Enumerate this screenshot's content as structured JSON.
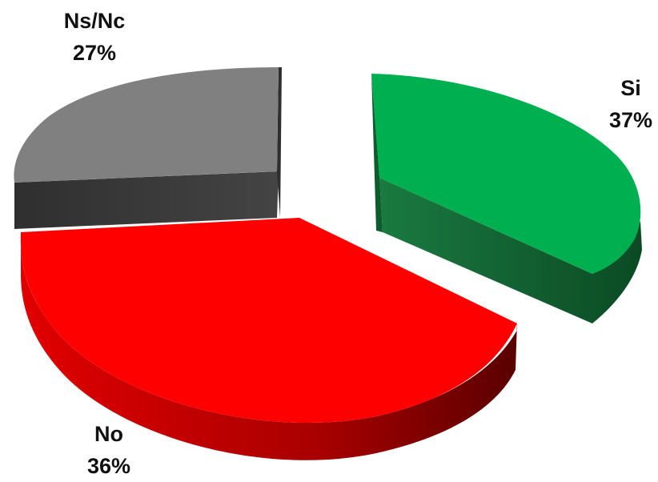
{
  "chart_data": {
    "type": "pie",
    "style": "3d-exploded",
    "categories": [
      "Si",
      "No",
      "Ns/Nc"
    ],
    "values": [
      37,
      36,
      27
    ],
    "percent_labels": [
      "37%",
      "36%",
      "27%"
    ],
    "colors": {
      "Si": "#00b050",
      "No": "#ff0000",
      "Ns/Nc": "#808080"
    },
    "side_colors": {
      "Si": "#0d5c2d",
      "No": "#b50000",
      "Ns/Nc": "#3a3a3a"
    },
    "legend": "none",
    "data_labels": "category-and-percent"
  }
}
